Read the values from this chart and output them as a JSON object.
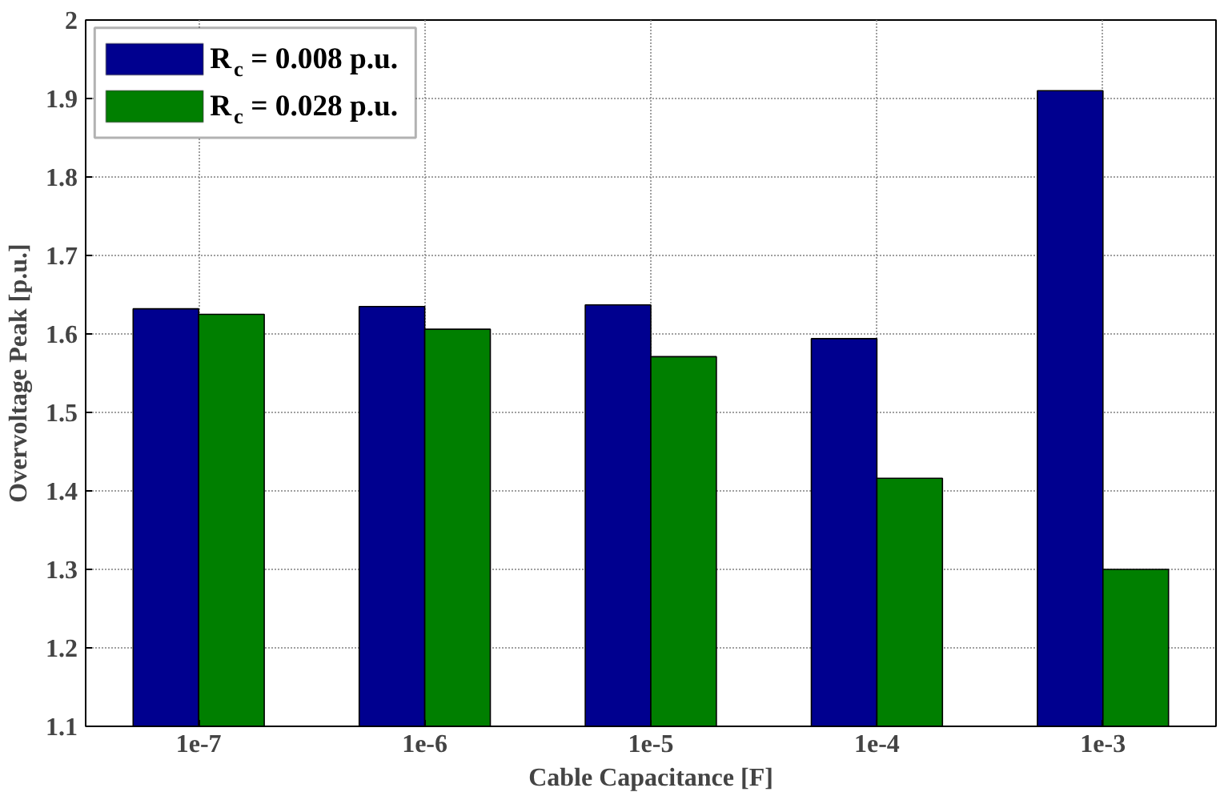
{
  "chart_data": {
    "type": "bar",
    "xlabel": "Cable Capacitance [F]",
    "ylabel": "Overvoltage Peak [p.u.]",
    "categories": [
      "1e-7",
      "1e-6",
      "1e-5",
      "1e-4",
      "1e-3"
    ],
    "series": [
      {
        "name": "R$_{c}$ = 0.008 p.u.",
        "color": "#00008f",
        "values": [
          1.632,
          1.635,
          1.637,
          1.594,
          1.91
        ]
      },
      {
        "name": "R$_{c}$ = 0.028 p.u.",
        "color": "#007f00",
        "values": [
          1.625,
          1.606,
          1.571,
          1.416,
          1.3
        ]
      }
    ],
    "ylim": [
      1.1,
      2
    ],
    "yticks": [
      1.1,
      1.2,
      1.3,
      1.4,
      1.5,
      1.6,
      1.7,
      1.8,
      1.9,
      2
    ],
    "grid": true,
    "legend": "top left"
  }
}
